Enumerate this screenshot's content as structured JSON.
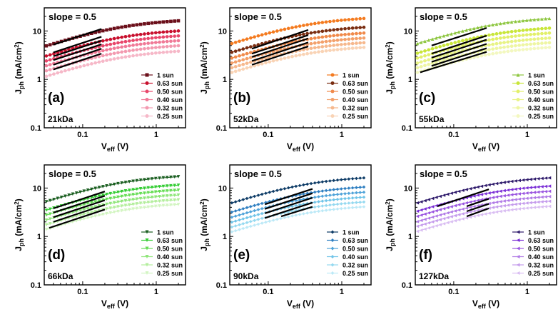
{
  "figure": {
    "description_free": true
  },
  "chart_data": [
    {
      "type": "scatter",
      "panel_label": "(a)",
      "sample": "21kDa",
      "slope_label": "slope = 0.5",
      "xlabel": "V",
      "xlabel_sub": "eff",
      "xlabel_unit": " (V)",
      "ylabel": "J",
      "ylabel_sub": "ph",
      "ylabel_unit": " (mA/cm",
      "ylabel_sup": "2",
      "ylabel_close": ")",
      "xscale": "log",
      "yscale": "log",
      "xlim": [
        0.03,
        2.5
      ],
      "ylim": [
        0.1,
        30
      ],
      "x_ticks": [
        {
          "v": 0.1,
          "label": "0.1"
        },
        {
          "v": 1,
          "label": "1"
        }
      ],
      "y_ticks": [
        {
          "v": 0.1,
          "label": "0.1"
        },
        {
          "v": 1,
          "label": "1"
        },
        {
          "v": 10,
          "label": "10"
        }
      ],
      "x_start": 0.032,
      "series": [
        {
          "name": "1 sun",
          "color": "#6b0f1a",
          "marker": "square",
          "jsat": 17
        },
        {
          "name": "0.63 sun",
          "color": "#c8102e",
          "marker": "circle",
          "jsat": 10.5
        },
        {
          "name": "0.50 sun",
          "color": "#e8476b",
          "marker": "circle",
          "jsat": 8.3
        },
        {
          "name": "0.40 sun",
          "color": "#f07a97",
          "marker": "circle",
          "jsat": 6.6
        },
        {
          "name": "0.32 sun",
          "color": "#f39ab0",
          "marker": "circle",
          "jsat": 5.2
        },
        {
          "name": "0.25 sun",
          "color": "#f6b8c8",
          "marker": "circle",
          "jsat": 4.0
        }
      ],
      "fit_lines": [
        {
          "x1": 0.04,
          "y1": 5.2,
          "x2": 0.18,
          "y2": 11.0
        },
        {
          "x1": 0.04,
          "y1": 3.6,
          "x2": 0.18,
          "y2": 7.6
        },
        {
          "x1": 0.04,
          "y1": 3.0,
          "x2": 0.18,
          "y2": 6.3
        },
        {
          "x1": 0.04,
          "y1": 2.5,
          "x2": 0.18,
          "y2": 5.3
        },
        {
          "x1": 0.04,
          "y1": 2.0,
          "x2": 0.18,
          "y2": 4.3
        },
        {
          "x1": 0.04,
          "y1": 1.6,
          "x2": 0.18,
          "y2": 3.4
        }
      ]
    },
    {
      "type": "scatter",
      "panel_label": "(b)",
      "sample": "52kDa",
      "slope_label": "slope = 0.5",
      "xlabel": "V",
      "xlabel_sub": "eff",
      "xlabel_unit": " (V)",
      "ylabel": "J",
      "ylabel_sub": "ph",
      "ylabel_unit": " (mA/cm",
      "ylabel_sup": "2",
      "ylabel_close": ")",
      "xscale": "log",
      "yscale": "log",
      "xlim": [
        0.03,
        2.5
      ],
      "ylim": [
        0.1,
        30
      ],
      "x_ticks": [
        {
          "v": 0.1,
          "label": "0.1"
        },
        {
          "v": 1,
          "label": "1"
        }
      ],
      "y_ticks": [
        {
          "v": 0.1,
          "label": "0.1"
        },
        {
          "v": 1,
          "label": "1"
        },
        {
          "v": 10,
          "label": "10"
        }
      ],
      "x_start": 0.032,
      "series": [
        {
          "name": "1 sun",
          "color": "#f47b20",
          "marker": "circle",
          "jsat": 19
        },
        {
          "name": "0.63 sun",
          "color": "#7a2e12",
          "marker": "circle",
          "jsat": 12.5
        },
        {
          "name": "0.50 sun",
          "color": "#f08a4b",
          "marker": "circle",
          "jsat": 9.5
        },
        {
          "name": "0.40 sun",
          "color": "#f3a06b",
          "marker": "circle",
          "jsat": 7.5
        },
        {
          "name": "0.32 sun",
          "color": "#f6b88d",
          "marker": "circle",
          "jsat": 6.0
        },
        {
          "name": "0.25 sun",
          "color": "#f9d3b5",
          "marker": "circle",
          "jsat": 4.8
        }
      ],
      "fit_lines": [
        {
          "x1": 0.06,
          "y1": 4.3,
          "x2": 0.35,
          "y2": 10.5
        },
        {
          "x1": 0.06,
          "y1": 3.4,
          "x2": 0.35,
          "y2": 8.2
        },
        {
          "x1": 0.06,
          "y1": 2.9,
          "x2": 0.35,
          "y2": 7.0
        },
        {
          "x1": 0.06,
          "y1": 2.4,
          "x2": 0.35,
          "y2": 5.8
        },
        {
          "x1": 0.06,
          "y1": 2.0,
          "x2": 0.35,
          "y2": 4.8
        }
      ]
    },
    {
      "type": "scatter",
      "panel_label": "(c)",
      "sample": "55kDa",
      "slope_label": "slope = 0.5",
      "xlabel": "V",
      "xlabel_sub": "eff",
      "xlabel_unit": " (V)",
      "ylabel": "J",
      "ylabel_sub": "ph",
      "ylabel_unit": " (mA/cm",
      "ylabel_sup": "2",
      "ylabel_close": ")",
      "xscale": "log",
      "yscale": "log",
      "xlim": [
        0.03,
        2.5
      ],
      "ylim": [
        0.1,
        30
      ],
      "x_ticks": [
        {
          "v": 0.1,
          "label": "0.1"
        },
        {
          "v": 1,
          "label": "1"
        }
      ],
      "y_ticks": [
        {
          "v": 0.1,
          "label": "0.1"
        },
        {
          "v": 1,
          "label": "1"
        },
        {
          "v": 10,
          "label": "10"
        }
      ],
      "x_start": 0.032,
      "series": [
        {
          "name": "1 sun",
          "color": "#8dc63f",
          "marker": "triangle",
          "jsat": 19
        },
        {
          "name": "0.63 sun",
          "color": "#c9e63a",
          "marker": "circle",
          "jsat": 12
        },
        {
          "name": "0.50 sun",
          "color": "#e2f06a",
          "marker": "circle",
          "jsat": 9.5
        },
        {
          "name": "0.40 sun",
          "color": "#e8f385",
          "marker": "circle",
          "jsat": 7.5
        },
        {
          "name": "0.32 sun",
          "color": "#eef6a3",
          "marker": "circle",
          "jsat": 6.0
        },
        {
          "name": "0.25 sun",
          "color": "#f3f8c0",
          "marker": "circle",
          "jsat": 4.8
        }
      ],
      "fit_lines": [
        {
          "x1": 0.05,
          "y1": 5.0,
          "x2": 0.28,
          "y2": 11.5
        },
        {
          "x1": 0.05,
          "y1": 3.4,
          "x2": 0.28,
          "y2": 8.0
        },
        {
          "x1": 0.05,
          "y1": 2.8,
          "x2": 0.28,
          "y2": 6.6
        },
        {
          "x1": 0.05,
          "y1": 2.3,
          "x2": 0.28,
          "y2": 5.4
        },
        {
          "x1": 0.05,
          "y1": 1.9,
          "x2": 0.28,
          "y2": 4.4
        },
        {
          "x1": 0.035,
          "y1": 1.4,
          "x2": 0.28,
          "y2": 3.7
        }
      ]
    },
    {
      "type": "scatter",
      "panel_label": "(d)",
      "sample": "66kDa",
      "slope_label": "slope = 0.5",
      "xlabel": "V",
      "xlabel_sub": "eff",
      "xlabel_unit": " (V)",
      "ylabel": "J",
      "ylabel_sub": "ph",
      "ylabel_unit": " (mA/cm",
      "ylabel_sup": "2",
      "ylabel_close": ")",
      "xscale": "log",
      "yscale": "log",
      "xlim": [
        0.03,
        2.5
      ],
      "ylim": [
        0.1,
        30
      ],
      "x_ticks": [
        {
          "v": 0.1,
          "label": "0.1"
        },
        {
          "v": 1,
          "label": "1"
        }
      ],
      "y_ticks": [
        {
          "v": 0.1,
          "label": "0.1"
        },
        {
          "v": 1,
          "label": "1"
        },
        {
          "v": 10,
          "label": "10"
        }
      ],
      "x_start": 0.032,
      "series": [
        {
          "name": "1 sun",
          "color": "#1a5e20",
          "marker": "triangle-down",
          "jsat": 18
        },
        {
          "name": "0.63 sun",
          "color": "#33cc33",
          "marker": "triangle-down",
          "jsat": 12
        },
        {
          "name": "0.50 sun",
          "color": "#66dd55",
          "marker": "triangle-down",
          "jsat": 9.5
        },
        {
          "name": "0.40 sun",
          "color": "#8fe67a",
          "marker": "triangle-down",
          "jsat": 7.5
        },
        {
          "name": "0.32 sun",
          "color": "#b3ee9c",
          "marker": "triangle-down",
          "jsat": 6.0
        },
        {
          "name": "0.25 sun",
          "color": "#d3f5c2",
          "marker": "triangle-down",
          "jsat": 4.8
        }
      ],
      "fit_lines": [
        {
          "x1": 0.04,
          "y1": 3.8,
          "x2": 0.2,
          "y2": 8.5
        },
        {
          "x1": 0.04,
          "y1": 3.1,
          "x2": 0.2,
          "y2": 6.9
        },
        {
          "x1": 0.04,
          "y1": 2.5,
          "x2": 0.2,
          "y2": 5.6
        },
        {
          "x1": 0.04,
          "y1": 2.0,
          "x2": 0.2,
          "y2": 4.5
        },
        {
          "x1": 0.035,
          "y1": 1.5,
          "x2": 0.2,
          "y2": 3.6
        }
      ]
    },
    {
      "type": "scatter",
      "panel_label": "(e)",
      "sample": "90kDa",
      "slope_label": "slope = 0.5",
      "xlabel": "V",
      "xlabel_sub": "eff",
      "xlabel_unit": " (V)",
      "ylabel": "J",
      "ylabel_sub": "ph",
      "ylabel_unit": " (mA/cm",
      "ylabel_sup": "2",
      "ylabel_close": ")",
      "xscale": "log",
      "yscale": "log",
      "xlim": [
        0.03,
        2.5
      ],
      "ylim": [
        0.1,
        30
      ],
      "x_ticks": [
        {
          "v": 0.1,
          "label": "0.1"
        },
        {
          "v": 1,
          "label": "1"
        }
      ],
      "y_ticks": [
        {
          "v": 0.1,
          "label": "0.1"
        },
        {
          "v": 1,
          "label": "1"
        },
        {
          "v": 10,
          "label": "10"
        }
      ],
      "x_start": 0.032,
      "series": [
        {
          "name": "1 sun",
          "color": "#0d3b66",
          "marker": "diamond",
          "jsat": 17
        },
        {
          "name": "0.63 sun",
          "color": "#2f7fc1",
          "marker": "diamond",
          "jsat": 11
        },
        {
          "name": "0.50 sun",
          "color": "#4fa3d9",
          "marker": "diamond",
          "jsat": 8.6
        },
        {
          "name": "0.40 sun",
          "color": "#70c4e8",
          "marker": "diamond",
          "jsat": 6.8
        },
        {
          "name": "0.32 sun",
          "color": "#95d9f0",
          "marker": "diamond",
          "jsat": 5.4
        },
        {
          "name": "0.25 sun",
          "color": "#bce9f7",
          "marker": "diamond",
          "jsat": 4.3
        }
      ],
      "fit_lines": [
        {
          "x1": 0.09,
          "y1": 4.6,
          "x2": 0.4,
          "y2": 9.6
        },
        {
          "x1": 0.09,
          "y1": 3.7,
          "x2": 0.4,
          "y2": 7.8
        },
        {
          "x1": 0.09,
          "y1": 3.0,
          "x2": 0.4,
          "y2": 6.3
        },
        {
          "x1": 0.09,
          "y1": 2.4,
          "x2": 0.4,
          "y2": 5.0
        },
        {
          "x1": 0.15,
          "y1": 2.6,
          "x2": 0.4,
          "y2": 4.1
        }
      ]
    },
    {
      "type": "scatter",
      "panel_label": "(f)",
      "sample": "127kDa",
      "slope_label": "slope = 0.5",
      "xlabel": "V",
      "xlabel_sub": "eff",
      "xlabel_unit": " (V)",
      "ylabel": "J",
      "ylabel_sub": "ph",
      "ylabel_unit": " (mA/cm",
      "ylabel_sup": "2",
      "ylabel_close": ")",
      "xscale": "log",
      "yscale": "log",
      "xlim": [
        0.03,
        2.5
      ],
      "ylim": [
        0.1,
        30
      ],
      "x_ticks": [
        {
          "v": 0.1,
          "label": "0.1"
        },
        {
          "v": 1,
          "label": "1"
        }
      ],
      "y_ticks": [
        {
          "v": 0.1,
          "label": "0.1"
        },
        {
          "v": 1,
          "label": "1"
        },
        {
          "v": 10,
          "label": "10"
        }
      ],
      "x_start": 0.032,
      "series": [
        {
          "name": "1 sun",
          "color": "#2e1a6b",
          "marker": "triangle-left",
          "jsat": 17
        },
        {
          "name": "0.63 sun",
          "color": "#7b2fd6",
          "marker": "triangle-left",
          "jsat": 11.5
        },
        {
          "name": "0.50 sun",
          "color": "#9a55e0",
          "marker": "triangle-left",
          "jsat": 9.0
        },
        {
          "name": "0.40 sun",
          "color": "#b07ae6",
          "marker": "triangle-left",
          "jsat": 7.0
        },
        {
          "name": "0.32 sun",
          "color": "#c59cec",
          "marker": "triangle-left",
          "jsat": 5.6
        },
        {
          "name": "0.25 sun",
          "color": "#d9bdf2",
          "marker": "triangle-left",
          "jsat": 4.4
        }
      ],
      "fit_lines": [
        {
          "x1": 0.06,
          "y1": 4.2,
          "x2": 0.3,
          "y2": 9.4
        },
        {
          "x1": 0.15,
          "y1": 4.2,
          "x2": 0.3,
          "y2": 6.0
        },
        {
          "x1": 0.15,
          "y1": 3.3,
          "x2": 0.3,
          "y2": 4.7
        },
        {
          "x1": 0.15,
          "y1": 2.6,
          "x2": 0.3,
          "y2": 3.8
        }
      ]
    }
  ]
}
